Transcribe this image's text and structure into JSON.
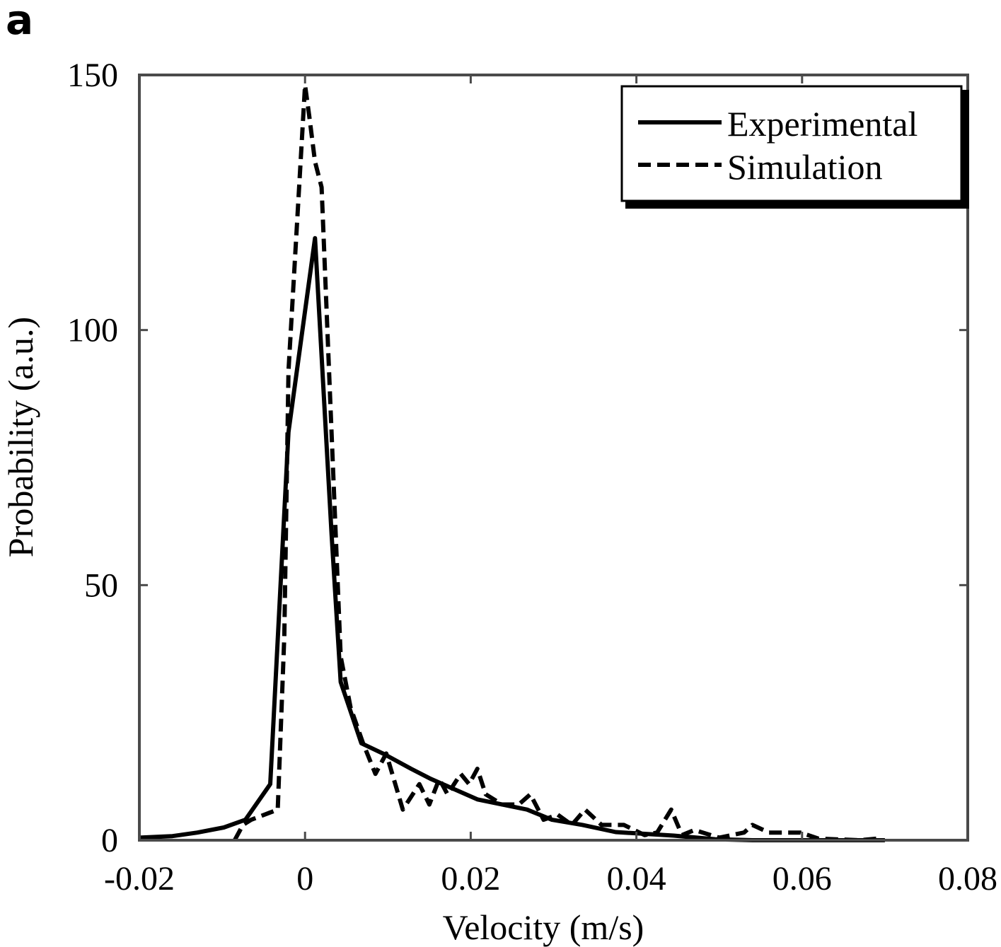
{
  "panel_label": "a",
  "chart_data": {
    "type": "line",
    "title": "",
    "xlabel": "Velocity (m/s)",
    "ylabel": "Probability (a.u.)",
    "xlim": [
      -0.02,
      0.08
    ],
    "ylim": [
      0,
      150
    ],
    "xticks": [
      -0.02,
      0,
      0.02,
      0.04,
      0.06,
      0.08
    ],
    "xtick_labels": [
      "-0.02",
      "0",
      "0.02",
      "0.04",
      "0.06",
      "0.08"
    ],
    "yticks": [
      0,
      50,
      100,
      150
    ],
    "ytick_labels": [
      "0",
      "50",
      "100",
      "150"
    ],
    "grid": false,
    "legend_position": "top-right",
    "series": [
      {
        "name": "Experimental",
        "style": "solid",
        "color": "#000000",
        "x": [
          -0.02,
          -0.016,
          -0.013,
          -0.0098,
          -0.0072,
          -0.0042,
          -0.002,
          0.0012,
          0.0032,
          0.0043,
          0.0068,
          0.0094,
          0.0128,
          0.0152,
          0.0208,
          0.0268,
          0.0298,
          0.0335,
          0.0375,
          0.0445,
          0.0495,
          0.054,
          0.06,
          0.07
        ],
        "y": [
          0.5,
          0.8,
          1.5,
          2.5,
          4,
          11,
          80,
          118,
          60,
          31,
          19,
          17,
          14,
          12,
          8,
          6,
          4,
          3,
          1.6,
          0.9,
          0.2,
          0,
          0,
          0
        ]
      },
      {
        "name": "Simulation",
        "style": "dashed",
        "color": "#000000",
        "x": [
          -0.0085,
          -0.0075,
          -0.0065,
          -0.0033,
          -0.0025,
          -0.002,
          0,
          0.0005,
          0.0012,
          0.002,
          0.003,
          0.0043,
          0.0055,
          0.007,
          0.0085,
          0.0098,
          0.0118,
          0.0138,
          0.015,
          0.0162,
          0.0172,
          0.0188,
          0.0198,
          0.0208,
          0.0218,
          0.0238,
          0.0258,
          0.0272,
          0.0288,
          0.0305,
          0.0322,
          0.0338,
          0.0358,
          0.0385,
          0.041,
          0.0425,
          0.0442,
          0.0455,
          0.047,
          0.05,
          0.053,
          0.054,
          0.056,
          0.0598,
          0.062,
          0.067,
          0.069
        ],
        "y": [
          0,
          3,
          4,
          6,
          40,
          92,
          148,
          142,
          133,
          128,
          88,
          36,
          26,
          19,
          13,
          17,
          6,
          11,
          7,
          12,
          9,
          13,
          11,
          14,
          9,
          7,
          7,
          9,
          4,
          5,
          3,
          6,
          3,
          3,
          1,
          1.5,
          6,
          1,
          2,
          0.5,
          1.5,
          3,
          1.5,
          1.5,
          0.3,
          0,
          0.3
        ]
      }
    ]
  }
}
